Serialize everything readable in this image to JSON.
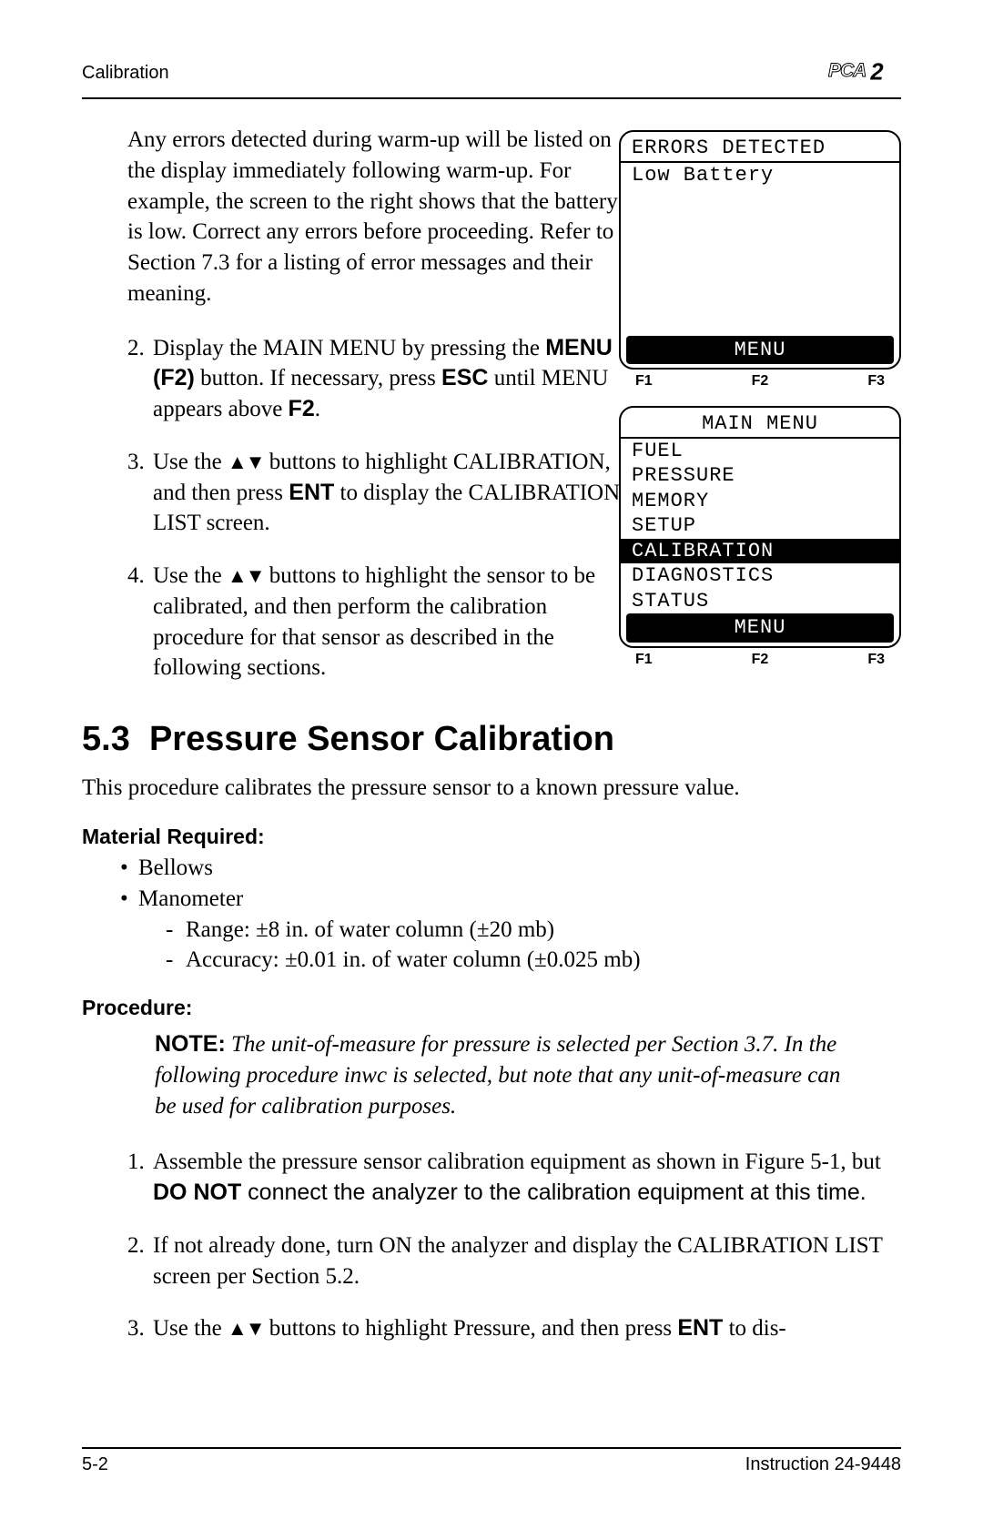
{
  "header": {
    "section_label": "Calibration",
    "logo_text": "PCA2"
  },
  "intro_paragraph": "Any errors detected during warm-up will be listed on the display immediately following warm-up. For example, the screen to the right shows that the battery is low. Correct any errors before proceeding. Refer to Section 7.3 for a listing of error messages and their meaning.",
  "steps": {
    "s2_a": "Display the MAIN MENU by pressing the ",
    "s2_b": "MENU (F2)",
    "s2_c": " button. If necessary, press ",
    "s2_d": "ESC",
    "s2_e": " until MENU appears above ",
    "s2_f": "F2",
    "s2_g": ".",
    "s3_a": "Use the ",
    "s3_b": " buttons to highlight CALIBRATION, and then press ",
    "s3_c": "ENT",
    "s3_d": " to display the CALIBRATION LIST screen.",
    "s4_a": "Use the ",
    "s4_b": " buttons to highlight the sensor to be calibrated, and then perform the calibration procedure for that sensor as described in the following sections."
  },
  "screen1": {
    "title": "ERRORS DETECTED",
    "line1": "Low Battery",
    "footer": "MENU",
    "f1": "F1",
    "f2": "F2",
    "f3": "F3"
  },
  "screen2": {
    "title": "MAIN MENU",
    "items": [
      "FUEL",
      "PRESSURE",
      "MEMORY",
      "SETUP",
      "CALIBRATION",
      "DIAGNOSTICS",
      "STATUS"
    ],
    "highlighted_index": 4,
    "footer": "MENU",
    "f1": "F1",
    "f2": "F2",
    "f3": "F3"
  },
  "section": {
    "number": "5.3",
    "title": "Pressure Sensor Calibration",
    "intro": "This procedure calibrates the pressure sensor to a known pressure value."
  },
  "material": {
    "heading": "Material Required:",
    "b1": "Bellows",
    "b2": "Manometer",
    "d1": "Range: ±8 in. of water column (±20 mb)",
    "d2": "Accuracy: ±0.01 in. of water column (±0.025 mb)"
  },
  "procedure": {
    "heading": "Procedure:",
    "note_label": "NOTE:",
    "note_body": " The unit-of-measure for pressure is selected per Section 3.7. In the following procedure inwc is selected, but note that any unit-of-measure can be used for calibration purposes.",
    "p1_a": "Assemble the pressure sensor calibration equipment as shown in Figure 5-1, but ",
    "p1_b": "DO NOT",
    "p1_c": " connect the analyzer to the calibration equipment at this time.",
    "p2": "If not already done, turn ON the analyzer and display the CALIBRATION LIST screen per Section 5.2.",
    "p3_a": "Use the ",
    "p3_b": " buttons to highlight Pressure, and then press ",
    "p3_c": "ENT",
    "p3_d": " to dis-"
  },
  "footer": {
    "left": "5-2",
    "right": "Instruction 24-9448"
  },
  "glyphs": {
    "updown": "▲▼"
  }
}
